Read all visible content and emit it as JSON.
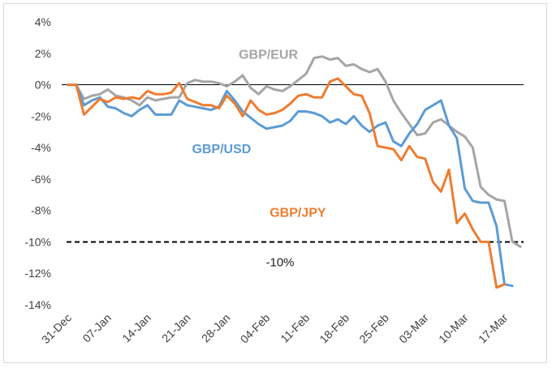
{
  "chart_data": {
    "type": "line",
    "xlabel": "",
    "ylabel": "",
    "ylim": [
      -14,
      4
    ],
    "y_ticks": [
      4,
      2,
      0,
      -2,
      -4,
      -6,
      -8,
      -10,
      -12,
      -14
    ],
    "y_tick_labels": [
      "4%",
      "2%",
      "0%",
      "-2%",
      "-4%",
      "-6%",
      "-8%",
      "-10%",
      "-12%",
      "-14%"
    ],
    "x_ticks": [
      "31-Dec",
      "07-Jan",
      "14-Jan",
      "21-Jan",
      "28-Jan",
      "04-Feb",
      "11-Feb",
      "18-Feb",
      "25-Feb",
      "03-Mar",
      "10-Mar",
      "17-Mar"
    ],
    "grid": false,
    "legend": "none",
    "reference_line": {
      "value": -10,
      "label": "-10%",
      "style": "dashed",
      "color": "#000000"
    },
    "series": [
      {
        "name": "GBP/EUR",
        "color": "#a5a5a5",
        "label_at": [
          21.5,
          1.65
        ],
        "points": [
          [
            0,
            0
          ],
          [
            1,
            0
          ],
          [
            2,
            -0.9
          ],
          [
            3,
            -0.7
          ],
          [
            4,
            -0.6
          ],
          [
            5,
            -0.3
          ],
          [
            6,
            -0.7
          ],
          [
            7,
            -0.8
          ],
          [
            8,
            -1.0
          ],
          [
            9,
            -1.3
          ],
          [
            10,
            -0.8
          ],
          [
            11,
            -1.0
          ],
          [
            12,
            -0.9
          ],
          [
            13,
            -0.8
          ],
          [
            14,
            -0.8
          ],
          [
            15,
            0.1
          ],
          [
            16,
            0.3
          ],
          [
            17,
            0.2
          ],
          [
            18,
            0.2
          ],
          [
            19,
            0.1
          ],
          [
            20,
            -0.1
          ],
          [
            21,
            0.2
          ],
          [
            22,
            0.6
          ],
          [
            23,
            -0.2
          ],
          [
            24,
            -0.6
          ],
          [
            25,
            -0.1
          ],
          [
            26,
            -0.3
          ],
          [
            27,
            -0.4
          ],
          [
            28,
            -0.1
          ],
          [
            29,
            0.3
          ],
          [
            30,
            0.7
          ],
          [
            31,
            1.7
          ],
          [
            32,
            1.8
          ],
          [
            33,
            1.6
          ],
          [
            34,
            1.7
          ],
          [
            35,
            1.2
          ],
          [
            36,
            1.3
          ],
          [
            37,
            1.0
          ],
          [
            38,
            0.8
          ],
          [
            39,
            1.0
          ],
          [
            40,
            0.2
          ],
          [
            41,
            -1.0
          ],
          [
            42,
            -1.8
          ],
          [
            43,
            -2.5
          ],
          [
            44,
            -3.2
          ],
          [
            45,
            -3.1
          ],
          [
            46,
            -2.4
          ],
          [
            47,
            -2.2
          ],
          [
            48,
            -2.6
          ],
          [
            49,
            -3.0
          ],
          [
            50,
            -3.3
          ],
          [
            51,
            -4.0
          ],
          [
            52,
            -6.5
          ],
          [
            53,
            -7.0
          ],
          [
            54,
            -7.3
          ],
          [
            55,
            -7.4
          ],
          [
            56,
            -10.0
          ],
          [
            57,
            -10.3
          ]
        ]
      },
      {
        "name": "GBP/USD",
        "color": "#5b9bd5",
        "label_at": [
          15.6,
          -4.35
        ],
        "points": [
          [
            0,
            0
          ],
          [
            1,
            0
          ],
          [
            2,
            -1.3
          ],
          [
            3,
            -1.0
          ],
          [
            4,
            -0.8
          ],
          [
            5,
            -1.4
          ],
          [
            6,
            -1.5
          ],
          [
            7,
            -1.8
          ],
          [
            8,
            -2.0
          ],
          [
            9,
            -1.6
          ],
          [
            10,
            -1.3
          ],
          [
            11,
            -1.9
          ],
          [
            12,
            -1.9
          ],
          [
            13,
            -1.9
          ],
          [
            14,
            -1.0
          ],
          [
            15,
            -1.3
          ],
          [
            16,
            -1.4
          ],
          [
            17,
            -1.5
          ],
          [
            18,
            -1.6
          ],
          [
            19,
            -1.4
          ],
          [
            20,
            -0.4
          ],
          [
            21,
            -1.0
          ],
          [
            22,
            -1.7
          ],
          [
            23,
            -2.1
          ],
          [
            24,
            -2.5
          ],
          [
            25,
            -2.8
          ],
          [
            26,
            -2.7
          ],
          [
            27,
            -2.6
          ],
          [
            28,
            -2.3
          ],
          [
            29,
            -1.7
          ],
          [
            30,
            -1.7
          ],
          [
            31,
            -1.8
          ],
          [
            32,
            -2.0
          ],
          [
            33,
            -2.4
          ],
          [
            34,
            -2.2
          ],
          [
            35,
            -2.5
          ],
          [
            36,
            -2.0
          ],
          [
            37,
            -2.6
          ],
          [
            38,
            -3.0
          ],
          [
            39,
            -2.6
          ],
          [
            40,
            -2.4
          ],
          [
            41,
            -3.6
          ],
          [
            42,
            -3.9
          ],
          [
            43,
            -3.1
          ],
          [
            44,
            -2.5
          ],
          [
            45,
            -1.6
          ],
          [
            46,
            -1.3
          ],
          [
            47,
            -1.0
          ],
          [
            48,
            -2.6
          ],
          [
            49,
            -3.4
          ],
          [
            50,
            -6.6
          ],
          [
            51,
            -7.4
          ],
          [
            52,
            -7.5
          ],
          [
            53,
            -7.5
          ],
          [
            54,
            -9.0
          ],
          [
            55,
            -12.7
          ],
          [
            56,
            -12.8
          ]
        ]
      },
      {
        "name": "GBP/JPY",
        "color": "#ed7d31",
        "label_at": [
          25.4,
          -8.4
        ],
        "points": [
          [
            0,
            0
          ],
          [
            1,
            0
          ],
          [
            2,
            -1.9
          ],
          [
            3,
            -1.4
          ],
          [
            4,
            -0.9
          ],
          [
            5,
            -1.1
          ],
          [
            6,
            -0.8
          ],
          [
            7,
            -0.9
          ],
          [
            8,
            -0.8
          ],
          [
            9,
            -0.9
          ],
          [
            10,
            -0.4
          ],
          [
            11,
            -0.6
          ],
          [
            12,
            -0.6
          ],
          [
            13,
            -0.5
          ],
          [
            14,
            0.1
          ],
          [
            15,
            -0.9
          ],
          [
            16,
            -1.1
          ],
          [
            17,
            -1.3
          ],
          [
            18,
            -1.3
          ],
          [
            19,
            -1.5
          ],
          [
            20,
            -0.7
          ],
          [
            21,
            -1.2
          ],
          [
            22,
            -2.0
          ],
          [
            23,
            -1.0
          ],
          [
            24,
            -1.6
          ],
          [
            25,
            -1.9
          ],
          [
            26,
            -1.8
          ],
          [
            27,
            -1.6
          ],
          [
            28,
            -1.2
          ],
          [
            29,
            -0.7
          ],
          [
            30,
            -0.6
          ],
          [
            31,
            -0.8
          ],
          [
            32,
            -0.8
          ],
          [
            33,
            0.2
          ],
          [
            34,
            0.4
          ],
          [
            35,
            -0.1
          ],
          [
            36,
            -0.6
          ],
          [
            37,
            -0.7
          ],
          [
            38,
            -1.8
          ],
          [
            39,
            -3.9
          ],
          [
            40,
            -4.0
          ],
          [
            41,
            -4.1
          ],
          [
            42,
            -4.8
          ],
          [
            43,
            -3.9
          ],
          [
            44,
            -4.6
          ],
          [
            45,
            -4.7
          ],
          [
            46,
            -6.2
          ],
          [
            47,
            -6.8
          ],
          [
            48,
            -5.4
          ],
          [
            49,
            -8.8
          ],
          [
            50,
            -8.2
          ],
          [
            51,
            -9.2
          ],
          [
            52,
            -10.0
          ],
          [
            53,
            -10.0
          ],
          [
            54,
            -12.9
          ],
          [
            55,
            -12.7
          ]
        ]
      }
    ]
  }
}
